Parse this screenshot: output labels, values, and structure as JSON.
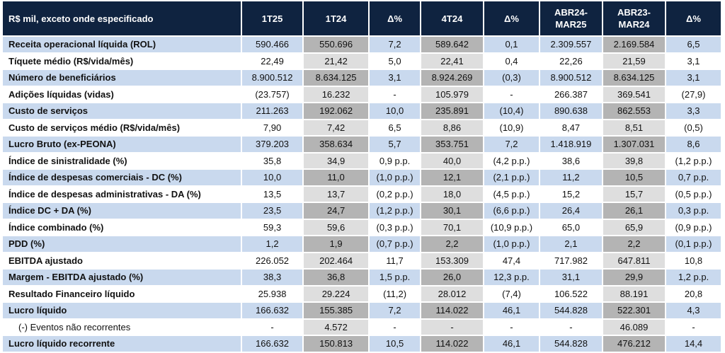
{
  "header": [
    "R$ mil, exceto onde especificado",
    "1T25",
    "1T24",
    "Δ%",
    "4T24",
    "Δ%",
    "ABR24-\nMAR25",
    "ABR23-\nMAR24",
    "Δ%"
  ],
  "rows": [
    {
      "label": "Receita operacional líquida (ROL)",
      "values": [
        "590.466",
        "550.696",
        "7,2",
        "589.642",
        "0,1",
        "2.309.557",
        "2.169.584",
        "6,5"
      ]
    },
    {
      "label": "Tíquete médio (R$/vida/mês)",
      "values": [
        "22,49",
        "21,42",
        "5,0",
        "22,41",
        "0,4",
        "22,26",
        "21,59",
        "3,1"
      ]
    },
    {
      "label": "Número de beneficiários",
      "values": [
        "8.900.512",
        "8.634.125",
        "3,1",
        "8.924.269",
        "(0,3)",
        "8.900.512",
        "8.634.125",
        "3,1"
      ]
    },
    {
      "label": "Adições líquidas (vidas)",
      "values": [
        "(23.757)",
        "16.232",
        "-",
        "105.979",
        "-",
        "266.387",
        "369.541",
        "(27,9)"
      ]
    },
    {
      "label": "Custo de serviços",
      "values": [
        "211.263",
        "192.062",
        "10,0",
        "235.891",
        "(10,4)",
        "890.638",
        "862.553",
        "3,3"
      ]
    },
    {
      "label": "Custo de serviços médio (R$/vida/mês)",
      "values": [
        "7,90",
        "7,42",
        "6,5",
        "8,86",
        "(10,9)",
        "8,47",
        "8,51",
        "(0,5)"
      ]
    },
    {
      "label": "Lucro Bruto (ex-PEONA)",
      "values": [
        "379.203",
        "358.634",
        "5,7",
        "353.751",
        "7,2",
        "1.418.919",
        "1.307.031",
        "8,6"
      ]
    },
    {
      "label": "Índice de sinistralidade (%)",
      "values": [
        "35,8",
        "34,9",
        "0,9 p.p.",
        "40,0",
        "(4,2 p.p.)",
        "38,6",
        "39,8",
        "(1,2 p.p.)"
      ]
    },
    {
      "label": "Índice de despesas comerciais - DC (%)",
      "values": [
        "10,0",
        "11,0",
        "(1,0 p.p.)",
        "12,1",
        "(2,1 p.p.)",
        "11,2",
        "10,5",
        "0,7 p.p."
      ]
    },
    {
      "label": "Índice de despesas administrativas - DA (%)",
      "values": [
        "13,5",
        "13,7",
        "(0,2 p.p.)",
        "18,0",
        "(4,5 p.p.)",
        "15,2",
        "15,7",
        "(0,5 p.p.)"
      ]
    },
    {
      "label": "Índice DC + DA (%)",
      "values": [
        "23,5",
        "24,7",
        "(1,2 p.p.)",
        "30,1",
        "(6,6 p.p.)",
        "26,4",
        "26,1",
        "0,3 p.p."
      ]
    },
    {
      "label": "Índice combinado (%)",
      "values": [
        "59,3",
        "59,6",
        "(0,3 p.p.)",
        "70,1",
        "(10,9 p.p.)",
        "65,0",
        "65,9",
        "(0,9 p.p.)"
      ]
    },
    {
      "label": "PDD  (%)",
      "values": [
        "1,2",
        "1,9",
        "(0,7 p.p.)",
        "2,2",
        "(1,0 p.p.)",
        "2,1",
        "2,2",
        "(0,1 p.p.)"
      ]
    },
    {
      "label": "EBITDA ajustado",
      "values": [
        "226.052",
        "202.464",
        "11,7",
        "153.309",
        "47,4",
        "717.982",
        "647.811",
        "10,8"
      ]
    },
    {
      "label": "Margem - EBITDA ajustado (%)",
      "values": [
        "38,3",
        "36,8",
        "1,5 p.p.",
        "26,0",
        "12,3 p.p.",
        "31,1",
        "29,9",
        "1,2 p.p."
      ]
    },
    {
      "label": "Resultado Financeiro líquido",
      "values": [
        "25.938",
        "29.224",
        "(11,2)",
        "28.012",
        "(7,4)",
        "106.522",
        "88.191",
        "20,8"
      ]
    },
    {
      "label": "Lucro líquido",
      "values": [
        "166.632",
        "155.385",
        "7,2",
        "114.022",
        "46,1",
        "544.828",
        "522.301",
        "4,3"
      ]
    },
    {
      "label": "(-) Eventos não recorrentes",
      "values": [
        "-",
        "4.572",
        "-",
        "-",
        "-",
        "-",
        "46.089",
        "-"
      ]
    },
    {
      "label": "Lucro líquido recorrente",
      "values": [
        "166.632",
        "150.813",
        "10,5",
        "114.022",
        "46,1",
        "544.828",
        "476.212",
        "14,4"
      ]
    }
  ],
  "colors": {
    "header_bg": "#0f2340",
    "row_blue": "#c9d9ee",
    "highlight_gray": "#b4b4b4",
    "highlight_light": "#dedede"
  }
}
